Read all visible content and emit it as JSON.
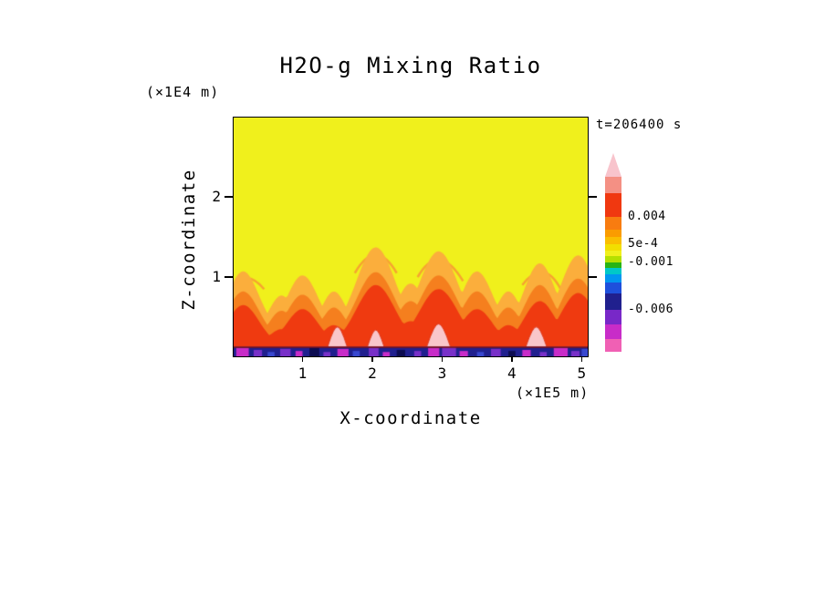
{
  "title": "H2O-g Mixing Ratio",
  "time_label": "t=206400 s",
  "axes": {
    "x_label": "X-coordinate",
    "x_unit": "(×1E5 m)",
    "z_label": "Z-coordinate",
    "z_unit": "(×1E4 m)"
  },
  "chart_data": {
    "type": "heatmap",
    "title": "H2O-g Mixing Ratio",
    "xlabel": "X-coordinate (×1E5 m)",
    "ylabel": "Z-coordinate (×1E4 m)",
    "time": "t=206400 s",
    "x_range": [
      0,
      5.1
    ],
    "z_range": [
      0,
      3.0
    ],
    "x_ticks": [
      1,
      2,
      3,
      4,
      5
    ],
    "z_ticks": [
      1,
      2
    ],
    "description": "2D vertical cross-section of H2O gas mixing ratio at t=206400 s. Upper domain is uniform (yellow, ~5e-4 level); convective plumes (orange/red, up to ~0.004) rise from a thin depleted boundary layer (dark blue/purple/magenta, down to ~-0.006) along the bottom.",
    "colorbar": {
      "labels": [
        {
          "text": "0.004",
          "value": 0.004
        },
        {
          "text": "5e-4",
          "value": 0.0005
        },
        {
          "text": "-0.001",
          "value": -0.001
        },
        {
          "text": "-0.006",
          "value": -0.006
        }
      ],
      "segments": [
        {
          "color": "#F8C4CC",
          "h": 26,
          "tip": true
        },
        {
          "color": "#F49084",
          "h": 18
        },
        {
          "color": "#F03810",
          "h": 26
        },
        {
          "color": "#F87C10",
          "h": 14
        },
        {
          "color": "#FA9C00",
          "h": 8
        },
        {
          "color": "#FABE00",
          "h": 8
        },
        {
          "color": "#F2DE00",
          "h": 7
        },
        {
          "color": "#F0F01C",
          "h": 6
        },
        {
          "color": "#B4E000",
          "h": 7
        },
        {
          "color": "#28B414",
          "h": 6
        },
        {
          "color": "#00C8C8",
          "h": 7
        },
        {
          "color": "#0096F0",
          "h": 9
        },
        {
          "color": "#1E50DC",
          "h": 12
        },
        {
          "color": "#20208E",
          "h": 18
        },
        {
          "color": "#7828C8",
          "h": 16
        },
        {
          "color": "#C82CC8",
          "h": 16
        },
        {
          "color": "#F060B4",
          "h": 14
        }
      ]
    },
    "field": {
      "background_color": "#F0F01C",
      "layers": [
        {
          "name": "orange-outer",
          "color": "#FBAE3C",
          "base": 0.32,
          "key": "ho",
          "scale": 1.0
        },
        {
          "name": "orange-inner",
          "color": "#F57F1E",
          "base": 0.22,
          "key": "ho",
          "scale": 0.8
        },
        {
          "name": "red-core",
          "color": "#EF3A10",
          "base": 0.15,
          "key": "hr",
          "scale": 1.0
        }
      ],
      "plumes": [
        {
          "x": 0.15,
          "w": 0.45,
          "ho": 0.75,
          "hr": 0.5
        },
        {
          "x": 0.7,
          "w": 0.35,
          "ho": 0.45,
          "hr": 0.2
        },
        {
          "x": 1.0,
          "w": 0.45,
          "ho": 0.7,
          "hr": 0.45
        },
        {
          "x": 1.45,
          "w": 0.35,
          "ho": 0.5,
          "hr": 0.25
        },
        {
          "x": 2.05,
          "w": 0.55,
          "ho": 1.05,
          "hr": 0.75
        },
        {
          "x": 2.55,
          "w": 0.4,
          "ho": 0.6,
          "hr": 0.3
        },
        {
          "x": 2.95,
          "w": 0.55,
          "ho": 1.0,
          "hr": 0.7
        },
        {
          "x": 3.5,
          "w": 0.45,
          "ho": 0.75,
          "hr": 0.45
        },
        {
          "x": 3.95,
          "w": 0.35,
          "ho": 0.5,
          "hr": 0.25
        },
        {
          "x": 4.4,
          "w": 0.45,
          "ho": 0.85,
          "hr": 0.55
        },
        {
          "x": 4.95,
          "w": 0.5,
          "ho": 0.95,
          "hr": 0.65
        }
      ],
      "pink_patches": [
        {
          "x": 1.5,
          "w": 0.28,
          "h": 0.26
        },
        {
          "x": 2.05,
          "w": 0.24,
          "h": 0.22
        },
        {
          "x": 2.95,
          "w": 0.34,
          "h": 0.3
        },
        {
          "x": 4.35,
          "w": 0.3,
          "h": 0.26
        }
      ],
      "wisps": [
        {
          "x1": 0.0,
          "z1": 0.9,
          "cx": 0.2,
          "cz": 1.1,
          "x2": 0.45,
          "z2": 0.85
        },
        {
          "x1": 1.75,
          "z1": 1.05,
          "cx": 2.05,
          "cz": 1.5,
          "x2": 2.35,
          "z2": 1.05
        },
        {
          "x1": 2.65,
          "z1": 1.0,
          "cx": 2.95,
          "cz": 1.45,
          "x2": 3.3,
          "z2": 0.95
        },
        {
          "x1": 4.15,
          "z1": 0.9,
          "cx": 4.45,
          "cz": 1.25,
          "x2": 4.7,
          "z2": 0.85
        }
      ],
      "strip": {
        "height": 0.13,
        "color": "#20208E",
        "border_color": "#7A1010",
        "speckle_colors": [
          "#C82CC8",
          "#7830C8",
          "#3848D0",
          "#0C0C50"
        ],
        "speckles": [
          [
            0.05,
            0.18,
            0.9,
            0
          ],
          [
            0.3,
            0.12,
            0.7,
            1
          ],
          [
            0.5,
            0.1,
            0.5,
            2
          ],
          [
            0.68,
            0.15,
            0.8,
            1
          ],
          [
            0.9,
            0.1,
            0.6,
            0
          ],
          [
            1.1,
            0.14,
            0.9,
            3
          ],
          [
            1.3,
            0.1,
            0.5,
            1
          ],
          [
            1.5,
            0.16,
            0.8,
            0
          ],
          [
            1.72,
            0.1,
            0.6,
            2
          ],
          [
            1.95,
            0.14,
            0.9,
            1
          ],
          [
            2.15,
            0.1,
            0.5,
            0
          ],
          [
            2.35,
            0.12,
            0.7,
            3
          ],
          [
            2.6,
            0.1,
            0.6,
            1
          ],
          [
            2.8,
            0.16,
            0.9,
            0
          ],
          [
            3.0,
            0.2,
            0.95,
            1
          ],
          [
            3.25,
            0.12,
            0.6,
            0
          ],
          [
            3.5,
            0.1,
            0.5,
            2
          ],
          [
            3.7,
            0.14,
            0.8,
            1
          ],
          [
            3.95,
            0.1,
            0.6,
            3
          ],
          [
            4.15,
            0.12,
            0.7,
            0
          ],
          [
            4.4,
            0.1,
            0.5,
            1
          ],
          [
            4.6,
            0.2,
            0.9,
            0
          ],
          [
            4.85,
            0.12,
            0.6,
            1
          ],
          [
            5.0,
            0.1,
            0.8,
            2
          ]
        ]
      }
    }
  }
}
